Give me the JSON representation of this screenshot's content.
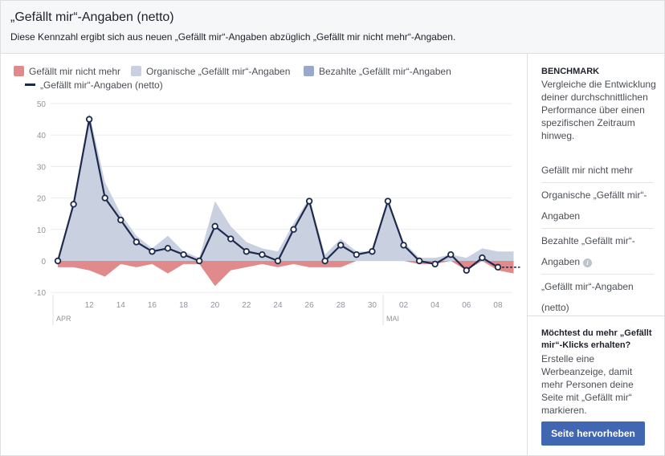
{
  "header": {
    "title": "„Gefällt mir“-Angaben (netto)",
    "subtitle": "Diese Kennzahl ergibt sich aus neuen „Gefällt mir“-Angaben abzüglich „Gefällt mir nicht mehr“-Angaben."
  },
  "legend": {
    "unlikes": "Gefällt mir nicht mehr",
    "organic": "Organische „Gefällt mir“-Angaben",
    "paid": "Bezahlte „Gefällt mir“-Angaben",
    "net": "„Gefällt mir“-Angaben (netto)"
  },
  "colors": {
    "unlikes": "#e08a8b",
    "organic": "#c9d0e0",
    "paid": "#9aa9cb",
    "net": "#1d2a4d",
    "button": "#4267b2"
  },
  "sidebar": {
    "benchmark_title": "BENCHMARK",
    "benchmark_desc": "Vergleiche die Entwicklung deiner durchschnittlichen Performance über einen spezifischen Zeitraum hinweg.",
    "items": [
      {
        "label": "Gefällt mir nicht mehr"
      },
      {
        "label": "Organische „Gefällt mir“-Angaben"
      },
      {
        "label": "Bezahlte „Gefällt mir“-Angaben"
      },
      {
        "label": "„Gefällt mir“-Angaben (netto)"
      }
    ],
    "promo_title": "Möchtest du mehr „Gefällt mir“-Klicks erhalten?",
    "promo_desc": "Erstelle eine Werbeanzeige, damit mehr Personen deine Seite mit „Gefällt mir“ markieren.",
    "promo_button": "Seite hervorheben"
  },
  "chart_data": {
    "type": "area",
    "x": [
      "10",
      "11",
      "12",
      "13",
      "14",
      "15",
      "16",
      "17",
      "18",
      "19",
      "20",
      "21",
      "22",
      "23",
      "24",
      "25",
      "26",
      "27",
      "28",
      "29",
      "30",
      "01",
      "02",
      "03",
      "04",
      "05",
      "06",
      "07",
      "08",
      "09"
    ],
    "xtick_labels": [
      "12",
      "14",
      "16",
      "18",
      "20",
      "22",
      "24",
      "26",
      "28",
      "30",
      "02",
      "04",
      "06",
      "08"
    ],
    "month_labels": [
      {
        "label": "APR",
        "at": "10"
      },
      {
        "label": "MAI",
        "at": "01"
      }
    ],
    "ylim": [
      -10,
      50
    ],
    "yticks": [
      -10,
      0,
      10,
      20,
      30,
      40,
      50
    ],
    "grid": true,
    "series": [
      {
        "name": "Organische „Gefällt mir“-Angaben",
        "values": [
          0,
          19,
          47,
          25,
          15,
          8,
          4,
          8,
          3,
          1,
          19,
          11,
          6,
          4,
          3,
          12,
          20,
          2,
          7,
          3,
          3,
          19,
          6,
          1,
          1,
          2,
          1,
          4,
          3,
          3
        ]
      },
      {
        "name": "Gefällt mir nicht mehr",
        "values": [
          -2,
          -2,
          -3,
          -5,
          -1,
          -2,
          -1,
          -4,
          -1,
          -1,
          -8,
          -3,
          -2,
          -1,
          -2,
          -1,
          -2,
          -2,
          -2,
          0,
          0,
          0,
          0,
          -1,
          -1,
          0,
          -3,
          0,
          -3,
          -4
        ]
      },
      {
        "name": "„Gefällt mir“-Angaben (netto)",
        "values": [
          0,
          18,
          45,
          20,
          13,
          6,
          3,
          4,
          2,
          0,
          11,
          7,
          3,
          2,
          0,
          10,
          19,
          0,
          5,
          2,
          3,
          19,
          5,
          0,
          -1,
          2,
          -3,
          1,
          -2,
          null
        ]
      }
    ]
  }
}
